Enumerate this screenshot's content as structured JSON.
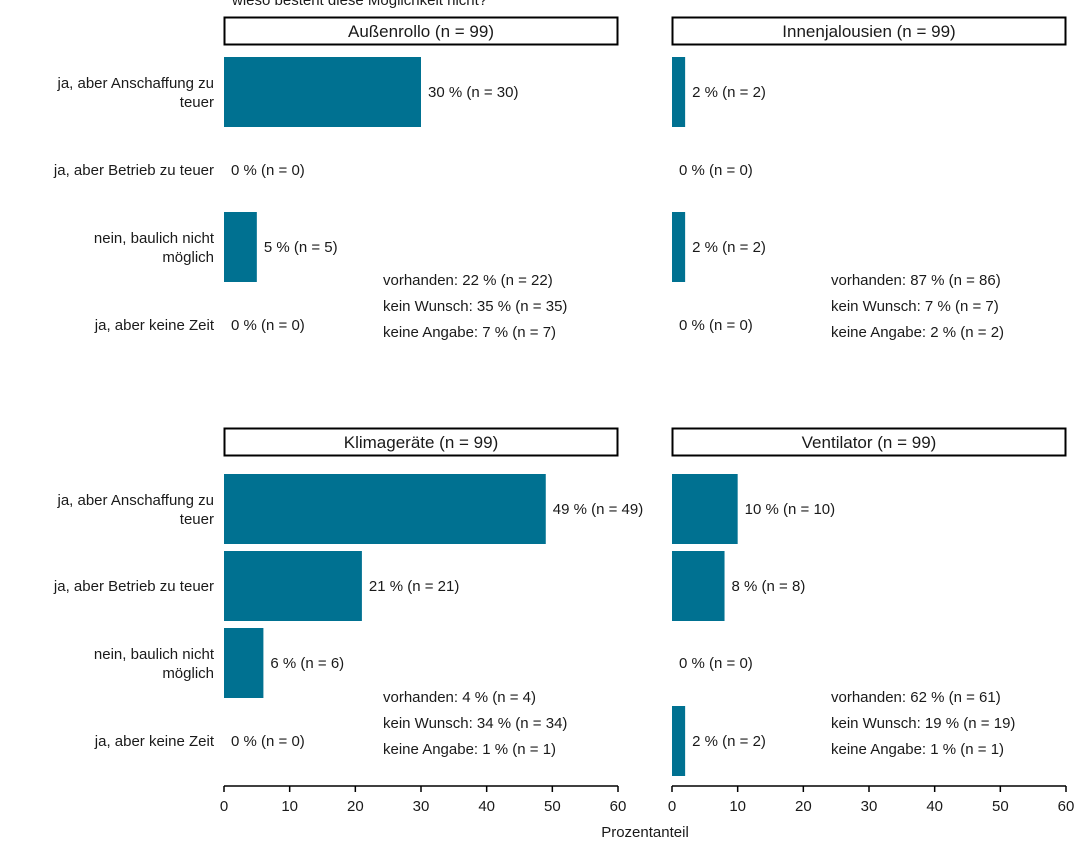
{
  "chart_data": {
    "type": "bar",
    "orientation": "horizontal",
    "title": "wieso besteht diese Möglichkeit nicht?",
    "xlabel": "Prozentanteil",
    "xlim": [
      0,
      60
    ],
    "xticks": [
      0,
      10,
      20,
      30,
      40,
      50,
      60
    ],
    "bar_color": "#007191",
    "categories": [
      "ja, aber Anschaffung zu teuer",
      "ja, aber Betrieb zu teuer",
      "nein, baulich nicht möglich",
      "ja, aber keine Zeit"
    ],
    "panels": [
      {
        "header": "Außenrollo (n = 99)",
        "values": [
          30,
          0,
          5,
          0
        ],
        "labels": [
          "30 % (n = 30)",
          "0 % (n = 0)",
          "5 % (n = 5)",
          "0 % (n = 0)"
        ],
        "notes": [
          "vorhanden: 22 % (n = 22)",
          "kein Wunsch: 35 % (n = 35)",
          "keine Angabe: 7 % (n = 7)"
        ]
      },
      {
        "header": "Innenjalousien (n = 99)",
        "values": [
          2,
          0,
          2,
          0
        ],
        "labels": [
          "2 % (n = 2)",
          "0 % (n = 0)",
          "2 % (n = 2)",
          "0 % (n = 0)"
        ],
        "notes": [
          "vorhanden: 87 % (n = 86)",
          "kein Wunsch: 7 % (n = 7)",
          "keine Angabe: 2 % (n = 2)"
        ]
      },
      {
        "header": "Klimageräte (n = 99)",
        "values": [
          49,
          21,
          6,
          0
        ],
        "labels": [
          "49 % (n = 49)",
          "21 % (n = 21)",
          "6 % (n = 6)",
          "0 % (n = 0)"
        ],
        "notes": [
          "vorhanden: 4 % (n = 4)",
          "kein Wunsch: 34 % (n = 34)",
          "keine Angabe: 1 % (n = 1)"
        ]
      },
      {
        "header": "Ventilator (n = 99)",
        "values": [
          10,
          8,
          0,
          2
        ],
        "labels": [
          "10 % (n = 10)",
          "8 % (n = 8)",
          "0 % (n = 0)",
          "2 % (n = 2)"
        ],
        "notes": [
          "vorhanden: 62 % (n = 61)",
          "kein Wunsch: 19 % (n = 19)",
          "keine Angabe: 1 % (n = 1)"
        ]
      }
    ]
  }
}
